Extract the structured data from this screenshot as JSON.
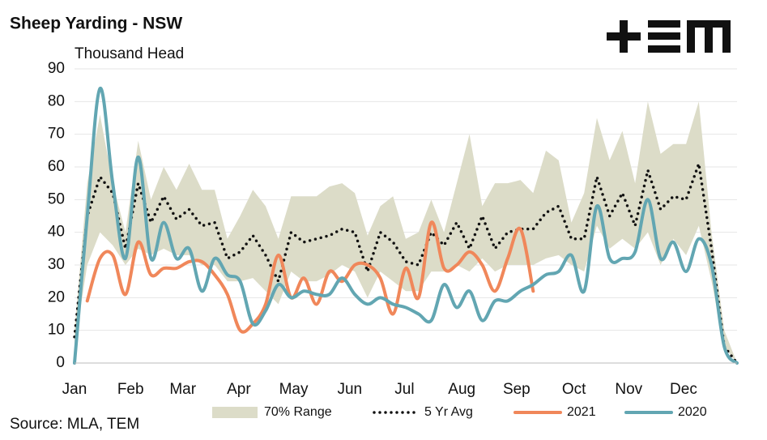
{
  "chart_data": {
    "type": "line",
    "title": "Sheep Yarding - NSW",
    "subtitle": "Thousand Head",
    "source": "Source: MLA, TEM",
    "x": [
      1,
      2,
      3,
      4,
      5,
      6,
      7,
      8,
      9,
      10,
      11,
      12,
      13,
      14,
      15,
      16,
      17,
      18,
      19,
      20,
      21,
      22,
      23,
      24,
      25,
      26,
      27,
      28,
      29,
      30,
      31,
      32,
      33,
      34,
      35,
      36,
      37,
      38,
      39,
      40,
      41,
      42,
      43,
      44,
      45,
      46,
      47,
      48,
      49,
      50,
      51,
      52,
      53
    ],
    "xlim": [
      1,
      53
    ],
    "xticks": [
      {
        "value": 1,
        "label": "Jan"
      },
      {
        "value": 5.4,
        "label": "Feb"
      },
      {
        "value": 9.5,
        "label": "Mar"
      },
      {
        "value": 13.9,
        "label": "Apr"
      },
      {
        "value": 18.2,
        "label": "May"
      },
      {
        "value": 22.6,
        "label": "Jun"
      },
      {
        "value": 26.9,
        "label": "Jul"
      },
      {
        "value": 31.4,
        "label": "Aug"
      },
      {
        "value": 35.7,
        "label": "Sep"
      },
      {
        "value": 40.2,
        "label": "Oct"
      },
      {
        "value": 44.5,
        "label": "Nov"
      },
      {
        "value": 48.8,
        "label": "Dec"
      }
    ],
    "ylim": [
      0,
      90
    ],
    "yticks": [
      0,
      10,
      20,
      30,
      40,
      50,
      60,
      70,
      80,
      90
    ],
    "grid": true,
    "series": [
      {
        "name": "70% Range",
        "style": "band",
        "color": "#dcdcc8",
        "high": [
          10,
          55,
          76,
          55,
          40,
          68,
          50,
          60,
          53,
          61,
          53,
          53,
          38,
          45,
          53,
          48,
          38,
          51,
          51,
          51,
          54,
          55,
          52,
          39,
          48,
          51,
          38,
          40,
          50,
          40,
          55,
          70,
          48,
          55,
          55,
          56,
          52,
          65,
          62,
          43,
          52,
          75,
          62,
          71,
          55,
          80,
          64,
          67,
          67,
          80,
          40,
          10,
          0
        ],
        "low": [
          5,
          30,
          40,
          36,
          30,
          35,
          33,
          35,
          33,
          33,
          30,
          30,
          25,
          25,
          26,
          22,
          18,
          28,
          25,
          25,
          27,
          30,
          28,
          20,
          28,
          25,
          22,
          22,
          28,
          28,
          30,
          28,
          32,
          28,
          30,
          30,
          30,
          32,
          33,
          30,
          28,
          42,
          35,
          38,
          35,
          40,
          30,
          38,
          33,
          42,
          25,
          5,
          0
        ]
      },
      {
        "name": "5 Yr Avg",
        "style": "dotted",
        "color": "#111111",
        "values": [
          8,
          45,
          57,
          52,
          35,
          55,
          43,
          51,
          44,
          47,
          42,
          43,
          32,
          34,
          39,
          33,
          25,
          40,
          37,
          38,
          39,
          41,
          40,
          28,
          40,
          37,
          31,
          30,
          40,
          36,
          43,
          35,
          45,
          35,
          40,
          41,
          41,
          46,
          48,
          38,
          38,
          57,
          45,
          52,
          42,
          59,
          47,
          51,
          50,
          61,
          35,
          5,
          0
        ]
      },
      {
        "name": "2021",
        "style": "line",
        "color": "#f0875a",
        "values": [
          null,
          19,
          32,
          33,
          21,
          37,
          27,
          29,
          29,
          31,
          31,
          27,
          21,
          10,
          12,
          18,
          33,
          20,
          26,
          18,
          28,
          25,
          30,
          30,
          26,
          15,
          29,
          20,
          43,
          29,
          30,
          34,
          30,
          22,
          32,
          41,
          22,
          null,
          null,
          null,
          null,
          null,
          null,
          null,
          null,
          null,
          null,
          null,
          null,
          null,
          null,
          null,
          null
        ]
      },
      {
        "name": "2020",
        "style": "line",
        "color": "#62a6b2",
        "values": [
          0,
          45,
          84,
          55,
          32,
          63,
          32,
          43,
          32,
          35,
          22,
          32,
          27,
          25,
          12,
          16,
          24,
          20,
          22,
          21,
          21,
          26,
          21,
          18,
          20,
          18,
          17,
          15,
          13,
          24,
          17,
          22,
          13,
          19,
          19,
          22,
          24,
          27,
          28,
          33,
          22,
          48,
          32,
          32,
          34,
          50,
          32,
          37,
          28,
          38,
          30,
          5,
          0
        ]
      }
    ]
  }
}
